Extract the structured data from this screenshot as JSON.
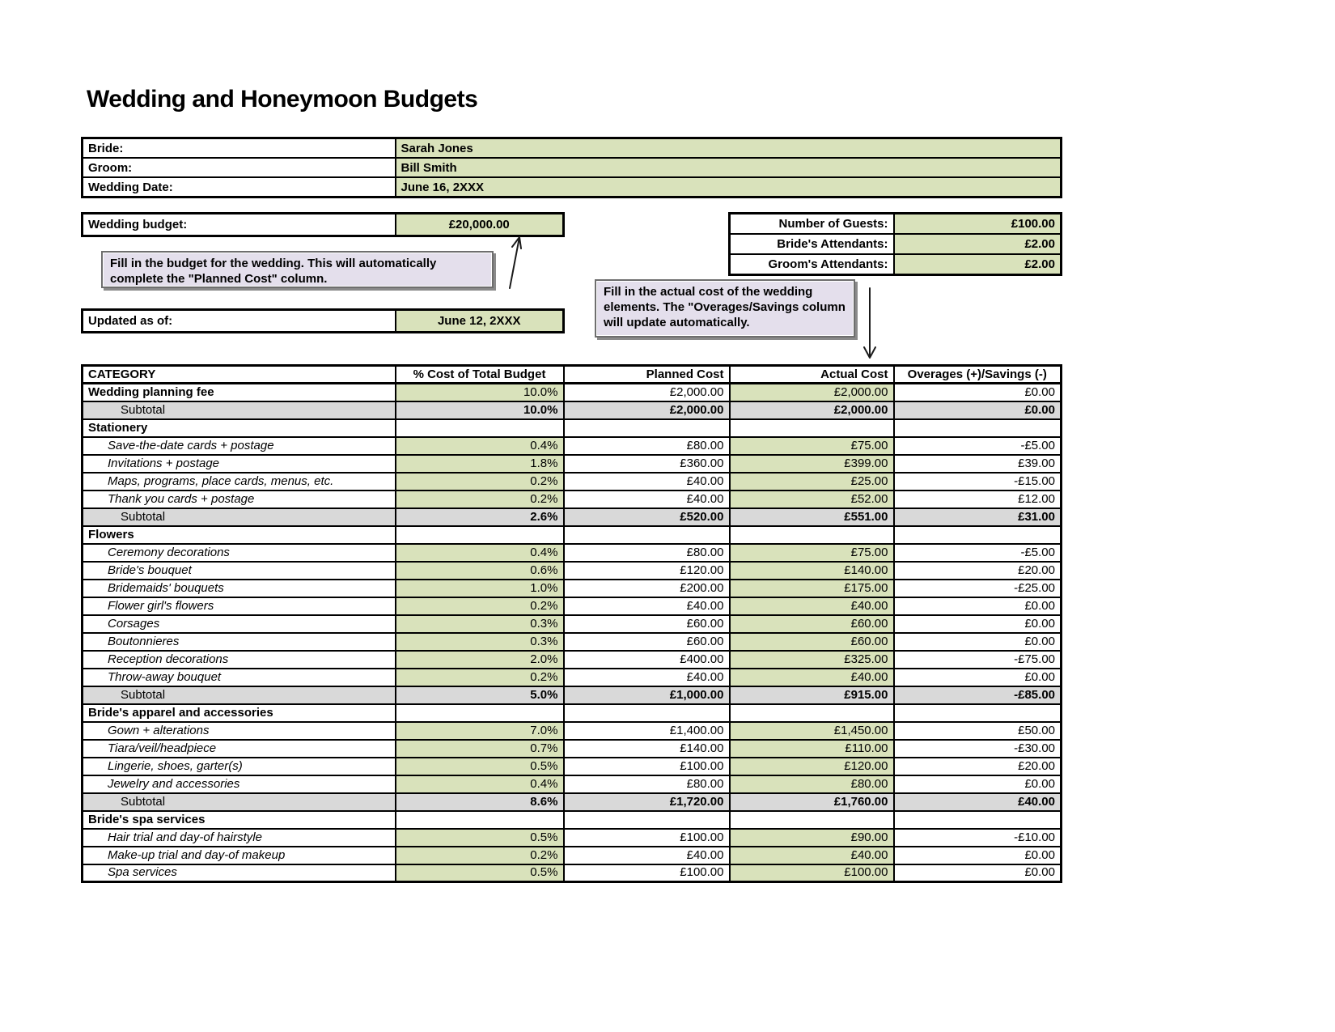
{
  "page_title": "Wedding and Honeymoon Budgets",
  "colors": {
    "cell_green": "#d9e2bb",
    "subtotal_gray": "#d9d9d9",
    "note_purple": "#e4dfec"
  },
  "couple_info": {
    "rows": [
      {
        "label": "Bride:",
        "value": "Sarah Jones"
      },
      {
        "label": "Groom:",
        "value": "Bill Smith"
      },
      {
        "label": "Wedding Date:",
        "value": "June 16, 2XXX"
      }
    ]
  },
  "budget": {
    "label": "Wedding budget:",
    "value": "£20,000.00"
  },
  "updated": {
    "label": "Updated as of:",
    "value": "June 12, 2XXX"
  },
  "guests": {
    "rows": [
      {
        "label": "Number of Guests:",
        "value": "£100.00"
      },
      {
        "label": "Bride's Attendants:",
        "value": "£2.00"
      },
      {
        "label": "Groom's Attendants:",
        "value": "£2.00"
      }
    ]
  },
  "notes": {
    "budget_note": "Fill in the budget for the wedding. This will automatically complete the \"Planned Cost\" column.",
    "actual_note": "Fill in the actual cost of the wedding elements. The \"Overages/Savings column will update automatically."
  },
  "table": {
    "headers": [
      "CATEGORY",
      "% Cost of Total Budget",
      "Planned Cost",
      "Actual Cost",
      "Overages (+)/Savings (-)"
    ],
    "rows": [
      {
        "type": "fee",
        "label": "Wedding planning fee",
        "pct": "10.0%",
        "planned": "£2,000.00",
        "actual": "£2,000.00",
        "over": "£0.00"
      },
      {
        "type": "subtotal",
        "label": "Subtotal",
        "pct": "10.0%",
        "planned": "£2,000.00",
        "actual": "£2,000.00",
        "over": "£0.00"
      },
      {
        "type": "section",
        "label": "Stationery",
        "pct": "",
        "planned": "",
        "actual": "",
        "over": ""
      },
      {
        "type": "item",
        "label": "Save-the-date cards + postage",
        "pct": "0.4%",
        "planned": "£80.00",
        "actual": "£75.00",
        "over": "-£5.00"
      },
      {
        "type": "item",
        "label": "Invitations + postage",
        "pct": "1.8%",
        "planned": "£360.00",
        "actual": "£399.00",
        "over": "£39.00"
      },
      {
        "type": "item",
        "label": "Maps, programs, place cards, menus, etc.",
        "pct": "0.2%",
        "planned": "£40.00",
        "actual": "£25.00",
        "over": "-£15.00"
      },
      {
        "type": "item",
        "label": "Thank you cards + postage",
        "pct": "0.2%",
        "planned": "£40.00",
        "actual": "£52.00",
        "over": "£12.00"
      },
      {
        "type": "subtotal",
        "label": "Subtotal",
        "pct": "2.6%",
        "planned": "£520.00",
        "actual": "£551.00",
        "over": "£31.00"
      },
      {
        "type": "section",
        "label": "Flowers",
        "pct": "",
        "planned": "",
        "actual": "",
        "over": ""
      },
      {
        "type": "item",
        "label": "Ceremony decorations",
        "pct": "0.4%",
        "planned": "£80.00",
        "actual": "£75.00",
        "over": "-£5.00"
      },
      {
        "type": "item",
        "label": "Bride's bouquet",
        "pct": "0.6%",
        "planned": "£120.00",
        "actual": "£140.00",
        "over": "£20.00"
      },
      {
        "type": "item",
        "label": "Bridemaids' bouquets",
        "pct": "1.0%",
        "planned": "£200.00",
        "actual": "£175.00",
        "over": "-£25.00"
      },
      {
        "type": "item",
        "label": "Flower girl's flowers",
        "pct": "0.2%",
        "planned": "£40.00",
        "actual": "£40.00",
        "over": "£0.00"
      },
      {
        "type": "item",
        "label": "Corsages",
        "pct": "0.3%",
        "planned": "£60.00",
        "actual": "£60.00",
        "over": "£0.00"
      },
      {
        "type": "item",
        "label": "Boutonnieres",
        "pct": "0.3%",
        "planned": "£60.00",
        "actual": "£60.00",
        "over": "£0.00"
      },
      {
        "type": "item",
        "label": "Reception decorations",
        "pct": "2.0%",
        "planned": "£400.00",
        "actual": "£325.00",
        "over": "-£75.00"
      },
      {
        "type": "item",
        "label": "Throw-away bouquet",
        "pct": "0.2%",
        "planned": "£40.00",
        "actual": "£40.00",
        "over": "£0.00"
      },
      {
        "type": "subtotal",
        "label": "Subtotal",
        "pct": "5.0%",
        "planned": "£1,000.00",
        "actual": "£915.00",
        "over": "-£85.00"
      },
      {
        "type": "section",
        "label": "Bride's apparel and accessories",
        "pct": "",
        "planned": "",
        "actual": "",
        "over": ""
      },
      {
        "type": "item",
        "label": "Gown + alterations",
        "pct": "7.0%",
        "planned": "£1,400.00",
        "actual": "£1,450.00",
        "over": "£50.00"
      },
      {
        "type": "item",
        "label": "Tiara/veil/headpiece",
        "pct": "0.7%",
        "planned": "£140.00",
        "actual": "£110.00",
        "over": "-£30.00"
      },
      {
        "type": "item",
        "label": "Lingerie, shoes, garter(s)",
        "pct": "0.5%",
        "planned": "£100.00",
        "actual": "£120.00",
        "over": "£20.00"
      },
      {
        "type": "item",
        "label": "Jewelry and accessories",
        "pct": "0.4%",
        "planned": "£80.00",
        "actual": "£80.00",
        "over": "£0.00"
      },
      {
        "type": "subtotal",
        "label": "Subtotal",
        "pct": "8.6%",
        "planned": "£1,720.00",
        "actual": "£1,760.00",
        "over": "£40.00"
      },
      {
        "type": "section",
        "label": "Bride's spa services",
        "pct": "",
        "planned": "",
        "actual": "",
        "over": ""
      },
      {
        "type": "item",
        "label": "Hair trial and day-of hairstyle",
        "pct": "0.5%",
        "planned": "£100.00",
        "actual": "£90.00",
        "over": "-£10.00"
      },
      {
        "type": "item",
        "label": "Make-up trial and day-of makeup",
        "pct": "0.2%",
        "planned": "£40.00",
        "actual": "£40.00",
        "over": "£0.00"
      },
      {
        "type": "item",
        "label": "Spa services",
        "pct": "0.5%",
        "planned": "£100.00",
        "actual": "£100.00",
        "over": "£0.00"
      }
    ]
  }
}
